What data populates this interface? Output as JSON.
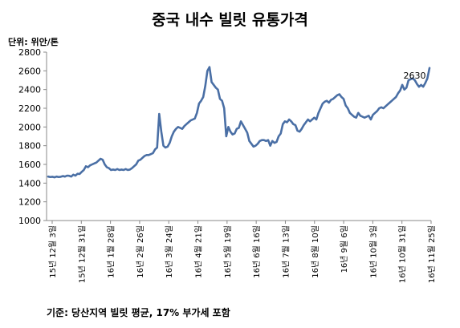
{
  "page": {
    "title": "중국 내수 빌릿 유통가격",
    "unit": "단위: 위안/톤",
    "footnote": "기준: 당산지역 빌릿 평균, 17% 부가세 포함"
  },
  "chart_data": {
    "type": "line",
    "title": "중국 내수 빌릿 유통가격",
    "xlabel": "",
    "ylabel": "단위: 위안/톤",
    "ylim": [
      1000,
      2800
    ],
    "yticks": [
      1000,
      1200,
      1400,
      1600,
      1800,
      2000,
      2200,
      2400,
      2600,
      2800
    ],
    "grid": false,
    "line_color": "#4a6fa5",
    "x_tick_labels": [
      "15년 12월 3일",
      "15년 12월 31일",
      "16년 1월 28일",
      "16년 2월 26일",
      "16년 3월 24일",
      "16년 4월 21일",
      "16년 5월 19일",
      "16년 6월 16일",
      "16년 7월 13일",
      "16년 8월 10일",
      "16년 9월 6일",
      "16년 10월 3일",
      "16년 10월 31일",
      "16년 11월 25일"
    ],
    "series": [
      {
        "values": [
          1470,
          1465,
          1468,
          1462,
          1470,
          1465,
          1468,
          1475,
          1470,
          1480,
          1478,
          1470,
          1490,
          1480,
          1500,
          1498,
          1520,
          1540,
          1580,
          1570,
          1590,
          1600,
          1610,
          1620,
          1640,
          1660,
          1650,
          1600,
          1570,
          1560,
          1540,
          1545,
          1540,
          1550,
          1540,
          1545,
          1540,
          1550,
          1540,
          1545,
          1560,
          1580,
          1600,
          1640,
          1650,
          1670,
          1690,
          1700,
          1700,
          1710,
          1720,
          1760,
          1780,
          2140,
          1950,
          1800,
          1780,
          1790,
          1830,
          1900,
          1950,
          1980,
          2000,
          1990,
          1980,
          2010,
          2030,
          2050,
          2070,
          2080,
          2090,
          2150,
          2250,
          2280,
          2320,
          2440,
          2600,
          2640,
          2480,
          2450,
          2420,
          2400,
          2300,
          2280,
          2200,
          1900,
          2000,
          1950,
          1920,
          1930,
          1980,
          1990,
          2060,
          2020,
          1980,
          1940,
          1850,
          1820,
          1790,
          1800,
          1820,
          1850,
          1860,
          1860,
          1850,
          1860,
          1800,
          1850,
          1830,
          1840,
          1900,
          1930,
          2030,
          2060,
          2050,
          2080,
          2060,
          2030,
          2020,
          1960,
          1950,
          1980,
          2020,
          2050,
          2080,
          2060,
          2080,
          2100,
          2080,
          2150,
          2200,
          2250,
          2270,
          2280,
          2260,
          2290,
          2300,
          2320,
          2340,
          2350,
          2320,
          2300,
          2230,
          2200,
          2150,
          2130,
          2110,
          2100,
          2150,
          2120,
          2110,
          2100,
          2110,
          2120,
          2080,
          2130,
          2150,
          2170,
          2200,
          2210,
          2200,
          2220,
          2240,
          2260,
          2280,
          2300,
          2320,
          2360,
          2390,
          2450,
          2400,
          2420,
          2500,
          2510,
          2520,
          2500,
          2460,
          2430,
          2450,
          2430,
          2470,
          2520,
          2630
        ]
      }
    ],
    "data_labels": [
      {
        "index": 178,
        "text": "2630"
      }
    ]
  }
}
